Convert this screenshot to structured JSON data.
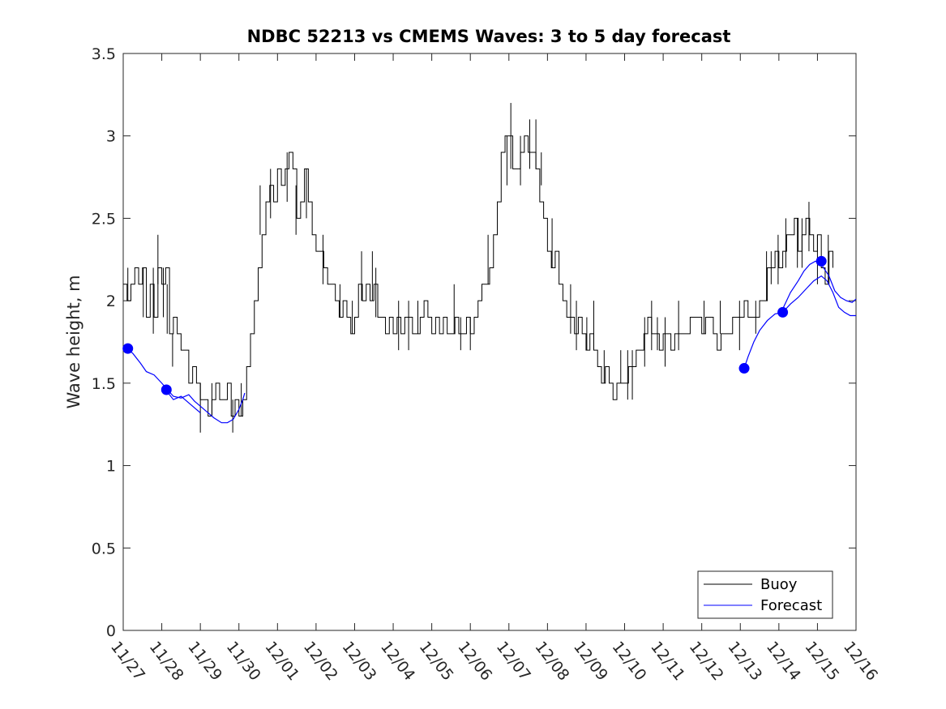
{
  "chart_data": {
    "type": "line",
    "title": "NDBC 52213 vs CMEMS Waves: 3 to 5 day forecast",
    "xlabel": "",
    "ylabel": "Wave height, m",
    "ylim": [
      0,
      3.5
    ],
    "xlim": [
      0,
      19
    ],
    "yticks": [
      0,
      0.5,
      1,
      1.5,
      2,
      2.5,
      3,
      3.5
    ],
    "ytick_labels": [
      "0",
      "0.5",
      "1",
      "1.5",
      "2",
      "2.5",
      "3",
      "3.5"
    ],
    "xtick_labels": [
      "11/27",
      "11/28",
      "11/29",
      "11/30",
      "12/01",
      "12/02",
      "12/03",
      "12/04",
      "12/05",
      "12/06",
      "12/07",
      "12/08",
      "12/09",
      "12/10",
      "12/11",
      "12/12",
      "12/13",
      "12/14",
      "12/15",
      "12/16"
    ],
    "legend": {
      "location": "bottom-right",
      "entries": [
        "Buoy",
        "Forecast"
      ]
    },
    "colors": {
      "buoy": "#000000",
      "forecast": "#0000ff",
      "markers": "#0000ff"
    },
    "buoy": {
      "name": "Buoy",
      "points": [
        [
          0.0,
          2.1
        ],
        [
          0.1,
          2.0
        ],
        [
          0.2,
          2.1
        ],
        [
          0.3,
          2.2
        ],
        [
          0.4,
          2.1
        ],
        [
          0.5,
          2.2
        ],
        [
          0.6,
          1.9
        ],
        [
          0.7,
          2.1
        ],
        [
          0.8,
          1.9
        ],
        [
          0.9,
          2.2
        ],
        [
          1.0,
          2.1
        ],
        [
          1.1,
          2.2
        ],
        [
          1.2,
          1.8
        ],
        [
          1.3,
          1.9
        ],
        [
          1.4,
          1.8
        ],
        [
          1.5,
          1.7
        ],
        [
          1.6,
          1.7
        ],
        [
          1.7,
          1.5
        ],
        [
          1.8,
          1.6
        ],
        [
          1.9,
          1.5
        ],
        [
          2.0,
          1.4
        ],
        [
          2.1,
          1.4
        ],
        [
          2.2,
          1.3
        ],
        [
          2.3,
          1.4
        ],
        [
          2.4,
          1.5
        ],
        [
          2.5,
          1.4
        ],
        [
          2.6,
          1.4
        ],
        [
          2.7,
          1.5
        ],
        [
          2.8,
          1.3
        ],
        [
          2.9,
          1.4
        ],
        [
          3.0,
          1.3
        ],
        [
          3.1,
          1.4
        ],
        [
          3.2,
          1.6
        ],
        [
          3.3,
          1.8
        ],
        [
          3.4,
          2.0
        ],
        [
          3.5,
          2.2
        ],
        [
          3.6,
          2.4
        ],
        [
          3.7,
          2.6
        ],
        [
          3.8,
          2.7
        ],
        [
          3.9,
          2.6
        ],
        [
          4.0,
          2.8
        ],
        [
          4.1,
          2.7
        ],
        [
          4.2,
          2.8
        ],
        [
          4.3,
          2.9
        ],
        [
          4.4,
          2.8
        ],
        [
          4.5,
          2.5
        ],
        [
          4.6,
          2.6
        ],
        [
          4.7,
          2.8
        ],
        [
          4.8,
          2.6
        ],
        [
          4.9,
          2.4
        ],
        [
          5.0,
          2.3
        ],
        [
          5.1,
          2.3
        ],
        [
          5.2,
          2.2
        ],
        [
          5.3,
          2.1
        ],
        [
          5.4,
          2.1
        ],
        [
          5.5,
          2.0
        ],
        [
          5.6,
          1.9
        ],
        [
          5.7,
          2.0
        ],
        [
          5.8,
          1.9
        ],
        [
          5.9,
          1.8
        ],
        [
          6.0,
          1.9
        ],
        [
          6.1,
          2.1
        ],
        [
          6.2,
          2.0
        ],
        [
          6.3,
          2.1
        ],
        [
          6.4,
          2.0
        ],
        [
          6.5,
          2.1
        ],
        [
          6.6,
          1.9
        ],
        [
          6.7,
          1.9
        ],
        [
          6.8,
          1.8
        ],
        [
          6.9,
          1.9
        ],
        [
          7.0,
          1.8
        ],
        [
          7.1,
          1.9
        ],
        [
          7.2,
          1.8
        ],
        [
          7.3,
          1.9
        ],
        [
          7.4,
          1.9
        ],
        [
          7.5,
          1.8
        ],
        [
          7.6,
          1.8
        ],
        [
          7.7,
          1.9
        ],
        [
          7.8,
          2.0
        ],
        [
          7.9,
          1.9
        ],
        [
          8.0,
          1.8
        ],
        [
          8.1,
          1.9
        ],
        [
          8.2,
          1.8
        ],
        [
          8.3,
          1.9
        ],
        [
          8.4,
          1.8
        ],
        [
          8.5,
          1.8
        ],
        [
          8.6,
          1.9
        ],
        [
          8.7,
          1.8
        ],
        [
          8.8,
          1.8
        ],
        [
          8.9,
          1.9
        ],
        [
          9.0,
          1.8
        ],
        [
          9.1,
          1.9
        ],
        [
          9.2,
          2.0
        ],
        [
          9.3,
          2.1
        ],
        [
          9.4,
          2.1
        ],
        [
          9.5,
          2.2
        ],
        [
          9.6,
          2.4
        ],
        [
          9.7,
          2.6
        ],
        [
          9.8,
          2.9
        ],
        [
          9.9,
          3.0
        ],
        [
          10.0,
          3.0
        ],
        [
          10.1,
          2.8
        ],
        [
          10.2,
          2.8
        ],
        [
          10.3,
          2.9
        ],
        [
          10.4,
          3.0
        ],
        [
          10.5,
          2.9
        ],
        [
          10.6,
          2.9
        ],
        [
          10.7,
          2.8
        ],
        [
          10.8,
          2.6
        ],
        [
          10.9,
          2.5
        ],
        [
          11.0,
          2.3
        ],
        [
          11.1,
          2.2
        ],
        [
          11.2,
          2.3
        ],
        [
          11.3,
          2.1
        ],
        [
          11.4,
          2.0
        ],
        [
          11.5,
          1.9
        ],
        [
          11.6,
          1.9
        ],
        [
          11.7,
          1.8
        ],
        [
          11.8,
          1.9
        ],
        [
          11.9,
          1.8
        ],
        [
          12.0,
          1.7
        ],
        [
          12.1,
          1.8
        ],
        [
          12.2,
          1.7
        ],
        [
          12.3,
          1.6
        ],
        [
          12.4,
          1.5
        ],
        [
          12.5,
          1.6
        ],
        [
          12.6,
          1.5
        ],
        [
          12.7,
          1.4
        ],
        [
          12.8,
          1.5
        ],
        [
          12.9,
          1.5
        ],
        [
          13.0,
          1.5
        ],
        [
          13.1,
          1.6
        ],
        [
          13.2,
          1.6
        ],
        [
          13.3,
          1.7
        ],
        [
          13.4,
          1.7
        ],
        [
          13.5,
          1.8
        ],
        [
          13.6,
          1.9
        ],
        [
          13.7,
          1.8
        ],
        [
          13.8,
          1.8
        ],
        [
          13.9,
          1.7
        ],
        [
          14.0,
          1.8
        ],
        [
          14.1,
          1.8
        ],
        [
          14.2,
          1.7
        ],
        [
          14.3,
          1.8
        ],
        [
          14.4,
          1.8
        ],
        [
          14.5,
          1.8
        ],
        [
          14.6,
          1.8
        ],
        [
          14.7,
          1.9
        ],
        [
          14.8,
          1.9
        ],
        [
          14.9,
          1.9
        ],
        [
          15.0,
          1.8
        ],
        [
          15.1,
          1.9
        ],
        [
          15.2,
          1.9
        ],
        [
          15.3,
          1.8
        ],
        [
          15.4,
          1.7
        ],
        [
          15.5,
          1.8
        ],
        [
          15.6,
          1.8
        ],
        [
          15.7,
          1.8
        ],
        [
          15.8,
          1.9
        ],
        [
          15.9,
          1.9
        ],
        [
          16.0,
          1.9
        ],
        [
          16.1,
          2.0
        ],
        [
          16.2,
          1.9
        ],
        [
          16.3,
          1.9
        ],
        [
          16.4,
          1.9
        ],
        [
          16.5,
          2.0
        ],
        [
          16.6,
          2.0
        ],
        [
          16.7,
          2.2
        ],
        [
          16.8,
          2.2
        ],
        [
          16.9,
          2.3
        ],
        [
          17.0,
          2.2
        ],
        [
          17.1,
          2.3
        ],
        [
          17.2,
          2.4
        ],
        [
          17.3,
          2.4
        ],
        [
          17.4,
          2.5
        ],
        [
          17.5,
          2.3
        ],
        [
          17.6,
          2.4
        ],
        [
          17.7,
          2.5
        ],
        [
          17.8,
          2.4
        ],
        [
          17.9,
          2.3
        ],
        [
          18.0,
          2.4
        ],
        [
          18.1,
          2.2
        ],
        [
          18.2,
          2.1
        ],
        [
          18.3,
          2.3
        ],
        [
          18.4,
          2.2
        ]
      ],
      "spikes": [
        [
          0.12,
          2.2,
          2.0
        ],
        [
          0.52,
          2.2,
          1.9
        ],
        [
          0.78,
          2.2,
          1.8
        ],
        [
          0.9,
          2.4,
          2.1
        ],
        [
          1.04,
          2.2,
          1.9
        ],
        [
          1.14,
          2.1,
          1.8
        ],
        [
          1.28,
          1.8,
          1.6
        ],
        [
          2.0,
          1.5,
          1.2
        ],
        [
          2.3,
          1.5,
          1.3
        ],
        [
          2.84,
          1.4,
          1.2
        ],
        [
          3.06,
          1.5,
          1.3
        ],
        [
          3.55,
          2.7,
          2.4
        ],
        [
          3.82,
          2.8,
          2.5
        ],
        [
          4.25,
          2.9,
          2.6
        ],
        [
          4.48,
          2.7,
          2.4
        ],
        [
          4.75,
          2.8,
          2.5
        ],
        [
          5.18,
          2.4,
          2.1
        ],
        [
          5.62,
          2.1,
          1.9
        ],
        [
          5.94,
          2.0,
          1.8
        ],
        [
          6.18,
          2.3,
          2.0
        ],
        [
          6.46,
          2.3,
          2.0
        ],
        [
          6.55,
          2.2,
          1.9
        ],
        [
          7.14,
          2.0,
          1.7
        ],
        [
          7.4,
          2.0,
          1.7
        ],
        [
          7.64,
          2.0,
          1.8
        ],
        [
          8.58,
          2.1,
          1.8
        ],
        [
          8.75,
          1.9,
          1.7
        ],
        [
          9.0,
          1.9,
          1.7
        ],
        [
          9.46,
          2.4,
          2.1
        ],
        [
          9.95,
          3.0,
          2.7
        ],
        [
          10.05,
          3.2,
          2.8
        ],
        [
          10.3,
          3.0,
          2.7
        ],
        [
          10.54,
          3.1,
          2.8
        ],
        [
          10.7,
          3.1,
          2.8
        ],
        [
          10.84,
          2.9,
          2.7
        ],
        [
          11.12,
          2.5,
          2.2
        ],
        [
          11.6,
          2.1,
          1.8
        ],
        [
          11.75,
          2.0,
          1.7
        ],
        [
          12.02,
          1.9,
          1.7
        ],
        [
          12.2,
          2.0,
          1.7
        ],
        [
          12.47,
          1.7,
          1.5
        ],
        [
          12.9,
          1.7,
          1.5
        ],
        [
          13.08,
          1.7,
          1.4
        ],
        [
          13.2,
          1.7,
          1.4
        ],
        [
          13.52,
          1.9,
          1.6
        ],
        [
          13.7,
          2.0,
          1.7
        ],
        [
          13.85,
          1.9,
          1.7
        ],
        [
          14.05,
          1.9,
          1.6
        ],
        [
          14.4,
          2.0,
          1.7
        ],
        [
          15.06,
          2.0,
          1.8
        ],
        [
          15.48,
          2.0,
          1.8
        ],
        [
          15.98,
          2.0,
          1.7
        ],
        [
          16.4,
          2.0,
          1.8
        ],
        [
          16.68,
          2.3,
          2.0
        ],
        [
          16.8,
          2.3,
          2.1
        ],
        [
          16.98,
          2.4,
          2.1
        ],
        [
          17.18,
          2.5,
          2.2
        ],
        [
          17.48,
          2.5,
          2.2
        ],
        [
          17.6,
          2.5,
          2.2
        ],
        [
          17.78,
          2.6,
          2.3
        ],
        [
          18.0,
          2.4,
          2.1
        ],
        [
          18.28,
          2.4,
          2.1
        ]
      ]
    },
    "forecast": {
      "name": "Forecast",
      "segments": [
        [
          [
            0.1,
            1.71
          ],
          [
            0.25,
            1.68
          ],
          [
            0.45,
            1.62
          ],
          [
            0.6,
            1.57
          ],
          [
            0.8,
            1.55
          ],
          [
            1.0,
            1.5
          ],
          [
            1.15,
            1.46
          ],
          [
            1.3,
            1.42
          ],
          [
            1.5,
            1.41
          ],
          [
            1.7,
            1.43
          ],
          [
            1.85,
            1.39
          ],
          [
            2.0,
            1.36
          ],
          [
            2.15,
            1.33
          ],
          [
            2.35,
            1.29
          ],
          [
            2.55,
            1.26
          ],
          [
            2.7,
            1.26
          ],
          [
            2.85,
            1.28
          ],
          [
            3.0,
            1.34
          ],
          [
            3.1,
            1.4
          ],
          [
            3.15,
            1.44
          ]
        ],
        [
          [
            1.1,
            1.46
          ],
          [
            1.3,
            1.4
          ],
          [
            1.5,
            1.42
          ],
          [
            1.75,
            1.37
          ],
          [
            2.0,
            1.32
          ]
        ],
        [
          [
            16.1,
            1.59
          ],
          [
            16.2,
            1.66
          ],
          [
            16.35,
            1.75
          ],
          [
            16.5,
            1.82
          ],
          [
            16.7,
            1.88
          ],
          [
            16.9,
            1.92
          ],
          [
            17.1,
            1.93
          ],
          [
            17.3,
            1.98
          ],
          [
            17.5,
            2.02
          ],
          [
            17.7,
            2.07
          ],
          [
            17.9,
            2.12
          ],
          [
            18.1,
            2.15
          ],
          [
            18.25,
            2.12
          ],
          [
            18.4,
            2.05
          ],
          [
            18.55,
            1.96
          ],
          [
            18.7,
            1.93
          ],
          [
            18.85,
            1.91
          ],
          [
            19.0,
            1.91
          ]
        ],
        [
          [
            17.1,
            1.95
          ],
          [
            17.3,
            2.05
          ],
          [
            17.5,
            2.12
          ],
          [
            17.65,
            2.18
          ],
          [
            17.8,
            2.22
          ],
          [
            17.95,
            2.24
          ],
          [
            18.1,
            2.22
          ],
          [
            18.3,
            2.15
          ],
          [
            18.45,
            2.06
          ],
          [
            18.6,
            2.02
          ],
          [
            18.75,
            2.0
          ],
          [
            18.9,
            1.99
          ],
          [
            19.0,
            2.01
          ]
        ]
      ],
      "markers": [
        [
          0.12,
          1.71
        ],
        [
          1.12,
          1.46
        ],
        [
          16.1,
          1.59
        ],
        [
          17.1,
          1.93
        ],
        [
          18.1,
          2.24
        ]
      ]
    }
  }
}
